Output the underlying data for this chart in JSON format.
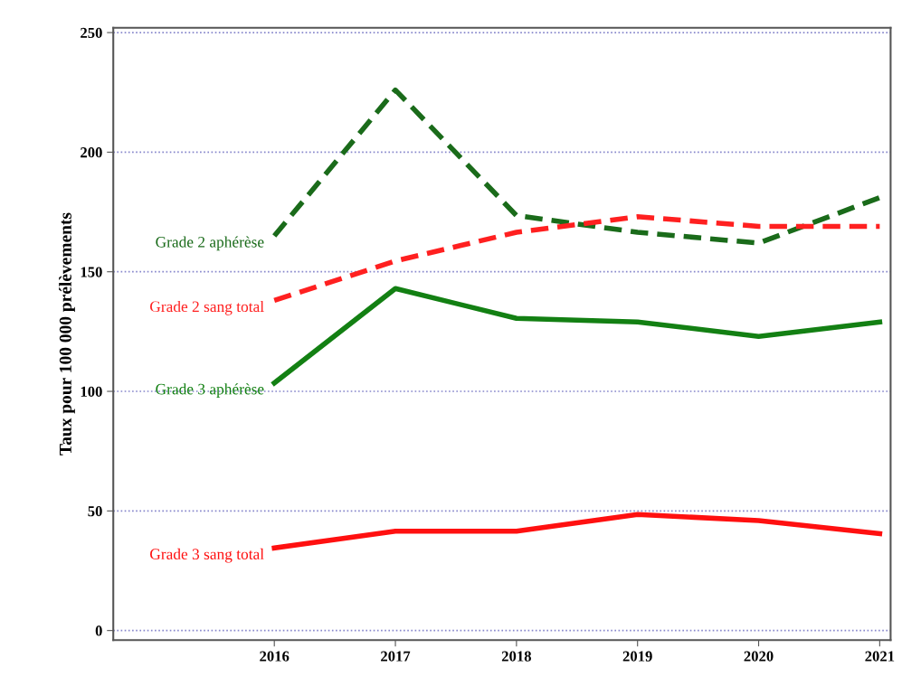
{
  "chart_data": {
    "type": "line",
    "ylabel": "Taux pour 100 000 prélèvements",
    "x": [
      2016,
      2017,
      2018,
      2019,
      2020,
      2021
    ],
    "series": [
      {
        "name": "Grade 2 aphérèse",
        "color": "#1a6b1a",
        "line_style": "dashed",
        "values": [
          165,
          226,
          173.5,
          166.5,
          162,
          181
        ]
      },
      {
        "name": "Grade 2 sang total",
        "color": "#ff2020",
        "line_style": "dashed",
        "values": [
          138,
          154.5,
          166.5,
          173,
          169,
          169
        ]
      },
      {
        "name": "Grade 3 aphérèse",
        "color": "#138013",
        "line_style": "solid",
        "values": [
          103.5,
          143,
          130.5,
          129,
          123,
          129
        ]
      },
      {
        "name": "Grade 3 sang total",
        "color": "#ff1010",
        "line_style": "solid",
        "values": [
          34.5,
          41.5,
          41.5,
          48.5,
          46,
          40.5
        ]
      }
    ],
    "xlim": [
      2014.67,
      2021.09
    ],
    "xticks": [
      2016,
      2017,
      2018,
      2019,
      2020,
      2021
    ],
    "ylim": [
      -4,
      252
    ],
    "yticks": [
      0,
      50,
      100,
      150,
      200,
      250
    ],
    "grid": "y",
    "legend": false,
    "marker": "none"
  }
}
